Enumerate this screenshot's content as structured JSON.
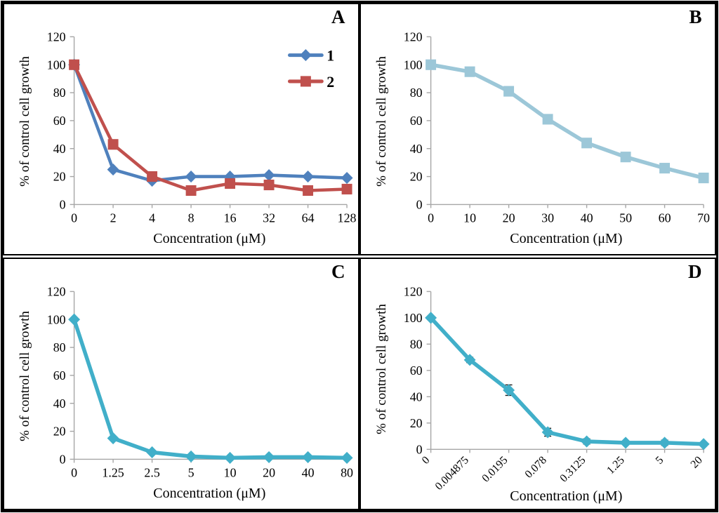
{
  "figure": {
    "panels": [
      "A",
      "B",
      "C",
      "D"
    ],
    "shared_ylabel": "% of control cell growth",
    "shared_xlabel": "Concentration (μM)"
  },
  "colors": {
    "series_blue": "#4F81BD",
    "series_red": "#C0504D",
    "series_lightblue": "#9CC7D8",
    "series_teal": "#41AFC9",
    "axis_gray": "#A6A6A6",
    "error_bar": "#1a1a1a"
  },
  "chart_data": [
    {
      "type": "line",
      "panel_label": "A",
      "title": "",
      "xlabel": "Concentration (μM)",
      "ylabel": "% of control cell growth",
      "ylim": [
        0,
        120
      ],
      "ytick_step": 20,
      "grid": false,
      "categories": [
        "0",
        "2",
        "4",
        "8",
        "16",
        "32",
        "64",
        "128"
      ],
      "series": [
        {
          "name": "1",
          "color": "#4F81BD",
          "marker": "diamond",
          "values": [
            100,
            25,
            17,
            20,
            20,
            21,
            20,
            19
          ]
        },
        {
          "name": "2",
          "color": "#C0504D",
          "marker": "square",
          "values": [
            100,
            43,
            20,
            10,
            15,
            14,
            10,
            11
          ]
        }
      ],
      "legend": {
        "show": true,
        "position": "top-right",
        "entries": [
          "1",
          "2"
        ]
      },
      "rotated_xticks": false,
      "error_bars": null
    },
    {
      "type": "line",
      "panel_label": "B",
      "title": "",
      "xlabel": "Concentration (μM)",
      "ylabel": "% of control cell growth",
      "ylim": [
        0,
        120
      ],
      "ytick_step": 20,
      "grid": false,
      "categories": [
        "0",
        "10",
        "20",
        "30",
        "40",
        "50",
        "60",
        "70"
      ],
      "series": [
        {
          "name": "",
          "color": "#9CC7D8",
          "marker": "square",
          "values": [
            100,
            95,
            81,
            61,
            44,
            34,
            26,
            19
          ]
        }
      ],
      "legend": {
        "show": false,
        "position": "",
        "entries": []
      },
      "rotated_xticks": false,
      "error_bars": null
    },
    {
      "type": "line",
      "panel_label": "C",
      "title": "",
      "xlabel": "Concentration (μM)",
      "ylabel": "% of control cell growth",
      "ylim": [
        0,
        120
      ],
      "ytick_step": 20,
      "grid": false,
      "categories": [
        "0",
        "1.25",
        "2.5",
        "5",
        "10",
        "20",
        "40",
        "80"
      ],
      "series": [
        {
          "name": "",
          "color": "#41AFC9",
          "marker": "diamond",
          "values": [
            100,
            15,
            5,
            2,
            1,
            1.5,
            1.5,
            1
          ]
        }
      ],
      "legend": {
        "show": false,
        "position": "",
        "entries": []
      },
      "rotated_xticks": false,
      "error_bars": null
    },
    {
      "type": "line",
      "panel_label": "D",
      "title": "",
      "xlabel": "Concentration (μM)",
      "ylabel": "% of control cell growth",
      "ylim": [
        0,
        120
      ],
      "ytick_step": 20,
      "grid": false,
      "categories": [
        "0",
        "0.004875",
        "0.0195",
        "0.078",
        "0.3125",
        "1.25",
        "5",
        "20"
      ],
      "series": [
        {
          "name": "",
          "color": "#41AFC9",
          "marker": "diamond",
          "values": [
            100,
            68,
            45,
            13,
            6,
            5,
            5,
            4
          ]
        }
      ],
      "legend": {
        "show": false,
        "position": "",
        "entries": []
      },
      "rotated_xticks": true,
      "error_bars": [
        0,
        2,
        4,
        3,
        2,
        1,
        2,
        1
      ]
    }
  ]
}
